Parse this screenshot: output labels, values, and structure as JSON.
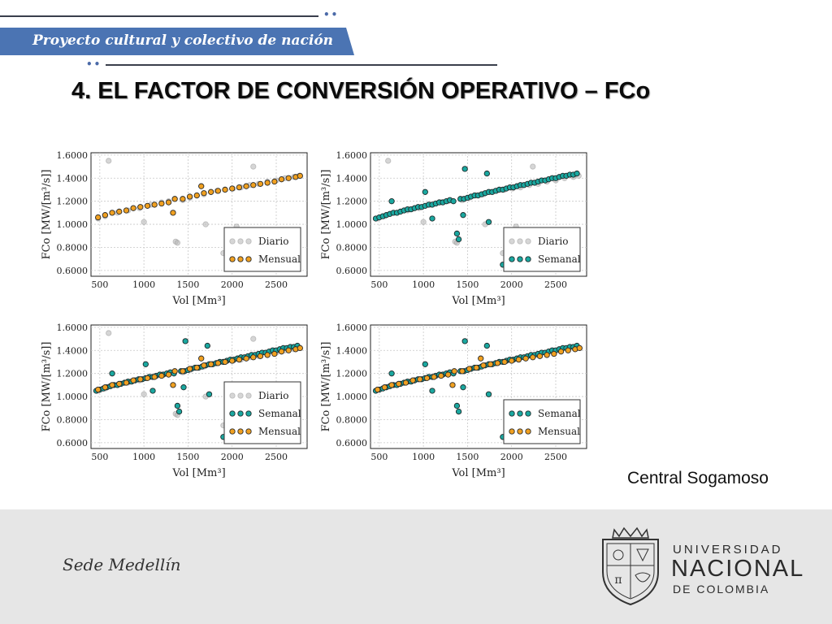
{
  "header": {
    "banner_text": "Proyecto cultural y colectivo de nación",
    "dots": "••"
  },
  "title": "4. EL FACTOR DE CONVERSIÓN OPERATIVO – FCo",
  "caption": "Central Sogamoso",
  "footer": {
    "sede": "Sede Medellín",
    "university_line1": "UNIVERSIDAD",
    "university_line2": "NACIONAL",
    "university_line3": "DE COLOMBIA"
  },
  "colors": {
    "banner": "#4b74b3",
    "diario": "#b4b4b4",
    "mensual": "#f0a020",
    "semanal": "#1aa8a0"
  },
  "chart_data": [
    {
      "type": "scatter",
      "xlabel": "Vol [Mm³]",
      "ylabel": "FCo [MW/[m³/s]]",
      "xlim": [
        400,
        2850
      ],
      "ylim": [
        0.55,
        1.62
      ],
      "xticks": [
        500,
        1000,
        1500,
        2000,
        2500
      ],
      "yticks": [
        "0.6000",
        "0.8000",
        "1.0000",
        "1.2000",
        "1.4000",
        "1.6000"
      ],
      "grid": true,
      "legend_position": "bottom-right",
      "series": [
        {
          "name": "Diario",
          "color_key": "diario",
          "x": [
            480,
            560,
            700,
            820,
            950,
            1080,
            1200,
            1280,
            1360,
            1380,
            1440,
            1520,
            1600,
            1680,
            1760,
            1830,
            1920,
            2010,
            2100,
            2200,
            2300,
            2400,
            2500,
            2600,
            2700,
            2760,
            600,
            1000,
            1950,
            1960,
            2050,
            2240,
            1700,
            1900
          ],
          "y": [
            1.05,
            1.07,
            1.1,
            1.12,
            1.14,
            1.17,
            1.19,
            1.2,
            0.85,
            0.84,
            1.21,
            1.23,
            1.25,
            1.26,
            1.28,
            1.29,
            1.3,
            1.31,
            1.32,
            1.34,
            1.35,
            1.37,
            1.38,
            1.4,
            1.41,
            1.42,
            1.55,
            1.02,
            0.65,
            0.62,
            0.98,
            1.5,
            1.0,
            0.75
          ]
        },
        {
          "name": "Mensual",
          "color_key": "mensual",
          "x": [
            480,
            560,
            640,
            720,
            800,
            880,
            960,
            1040,
            1120,
            1200,
            1280,
            1330,
            1440,
            1520,
            1600,
            1680,
            1760,
            1840,
            1920,
            2000,
            2080,
            2160,
            2240,
            2320,
            2400,
            2480,
            2560,
            2640,
            2720,
            2770,
            1650,
            1350
          ],
          "y": [
            1.06,
            1.08,
            1.1,
            1.11,
            1.12,
            1.14,
            1.15,
            1.16,
            1.17,
            1.18,
            1.19,
            1.1,
            1.22,
            1.24,
            1.25,
            1.27,
            1.28,
            1.29,
            1.3,
            1.31,
            1.32,
            1.33,
            1.34,
            1.35,
            1.36,
            1.37,
            1.39,
            1.4,
            1.41,
            1.42,
            1.33,
            1.22
          ]
        }
      ]
    },
    {
      "type": "scatter",
      "xlabel": "Vol [Mm³]",
      "ylabel": "FCo [MW/[m³/s]]",
      "xlim": [
        400,
        2850
      ],
      "ylim": [
        0.55,
        1.62
      ],
      "xticks": [
        500,
        1000,
        1500,
        2000,
        2500
      ],
      "yticks": [
        "0.6000",
        "0.8000",
        "1.0000",
        "1.2000",
        "1.4000",
        "1.6000"
      ],
      "grid": true,
      "legend_position": "bottom-right",
      "series": [
        {
          "name": "Diario",
          "color_key": "diario",
          "x": [
            480,
            560,
            700,
            820,
            950,
            1080,
            1200,
            1280,
            1360,
            1380,
            1440,
            1520,
            1600,
            1680,
            1760,
            1830,
            1920,
            2010,
            2100,
            2200,
            2300,
            2400,
            2500,
            2600,
            2700,
            2760,
            600,
            1000,
            1950,
            1960,
            2050,
            2240,
            1700,
            1900
          ],
          "y": [
            1.05,
            1.07,
            1.1,
            1.12,
            1.14,
            1.17,
            1.19,
            1.2,
            0.85,
            0.84,
            1.21,
            1.23,
            1.25,
            1.26,
            1.28,
            1.29,
            1.3,
            1.31,
            1.32,
            1.34,
            1.35,
            1.37,
            1.38,
            1.4,
            1.41,
            1.42,
            1.55,
            1.02,
            0.65,
            0.62,
            0.98,
            1.5,
            1.0,
            0.75
          ]
        },
        {
          "name": "Semanal",
          "color_key": "semanal",
          "x": [
            460,
            500,
            540,
            580,
            620,
            660,
            700,
            740,
            780,
            820,
            860,
            900,
            940,
            980,
            1020,
            1060,
            1100,
            1140,
            1180,
            1220,
            1260,
            1300,
            1340,
            1380,
            1400,
            1420,
            1460,
            1500,
            1540,
            1580,
            1620,
            1660,
            1700,
            1740,
            1780,
            1820,
            1860,
            1900,
            1940,
            1980,
            2020,
            2060,
            2100,
            2140,
            2180,
            2220,
            2260,
            2300,
            2340,
            2380,
            2420,
            2460,
            2500,
            2540,
            2580,
            2620,
            2660,
            2700,
            2740,
            1470,
            1720,
            1740,
            1100,
            1450,
            1900,
            1940,
            640,
            1020
          ],
          "y": [
            1.05,
            1.06,
            1.07,
            1.08,
            1.09,
            1.1,
            1.1,
            1.11,
            1.12,
            1.13,
            1.13,
            1.14,
            1.15,
            1.15,
            1.16,
            1.17,
            1.17,
            1.18,
            1.19,
            1.19,
            1.2,
            1.21,
            1.2,
            0.92,
            0.87,
            1.22,
            1.22,
            1.23,
            1.24,
            1.25,
            1.25,
            1.26,
            1.27,
            1.28,
            1.28,
            1.29,
            1.3,
            1.3,
            1.31,
            1.32,
            1.32,
            1.33,
            1.34,
            1.34,
            1.35,
            1.36,
            1.36,
            1.37,
            1.38,
            1.38,
            1.39,
            1.4,
            1.4,
            1.41,
            1.42,
            1.42,
            1.43,
            1.43,
            1.44,
            1.48,
            1.44,
            1.02,
            1.05,
            1.08,
            0.65,
            0.67,
            1.2,
            1.28
          ]
        }
      ]
    },
    {
      "type": "scatter",
      "xlabel": "Vol [Mm³]",
      "ylabel": "FCo [MW/[m³/s]]",
      "xlim": [
        400,
        2850
      ],
      "ylim": [
        0.55,
        1.62
      ],
      "xticks": [
        500,
        1000,
        1500,
        2000,
        2500
      ],
      "yticks": [
        "0.6000",
        "0.8000",
        "1.0000",
        "1.2000",
        "1.4000",
        "1.6000"
      ],
      "grid": true,
      "legend_position": "bottom-right",
      "series": [
        {
          "name": "Diario",
          "color_key": "diario",
          "x": [
            480,
            560,
            700,
            820,
            950,
            1080,
            1200,
            1280,
            1360,
            1380,
            1440,
            1520,
            1600,
            1680,
            1760,
            1830,
            1920,
            2010,
            2100,
            2200,
            2300,
            2400,
            2500,
            2600,
            2700,
            2760,
            600,
            1000,
            1950,
            1960,
            2050,
            2240,
            1700,
            1900
          ],
          "y": [
            1.05,
            1.07,
            1.1,
            1.12,
            1.14,
            1.17,
            1.19,
            1.2,
            0.85,
            0.84,
            1.21,
            1.23,
            1.25,
            1.26,
            1.28,
            1.29,
            1.3,
            1.31,
            1.32,
            1.34,
            1.35,
            1.37,
            1.38,
            1.4,
            1.41,
            1.42,
            1.55,
            1.02,
            0.65,
            0.62,
            0.98,
            1.5,
            1.0,
            0.75
          ]
        },
        {
          "name": "Semanal",
          "color_key": "semanal",
          "x": [
            460,
            500,
            540,
            580,
            620,
            660,
            700,
            740,
            780,
            820,
            860,
            900,
            940,
            980,
            1020,
            1060,
            1100,
            1140,
            1180,
            1220,
            1260,
            1300,
            1340,
            1380,
            1400,
            1420,
            1460,
            1500,
            1540,
            1580,
            1620,
            1660,
            1700,
            1740,
            1780,
            1820,
            1860,
            1900,
            1940,
            1980,
            2020,
            2060,
            2100,
            2140,
            2180,
            2220,
            2260,
            2300,
            2340,
            2380,
            2420,
            2460,
            2500,
            2540,
            2580,
            2620,
            2660,
            2700,
            2740,
            1470,
            1720,
            1740,
            1100,
            1450,
            1900,
            1940,
            640,
            1020
          ],
          "y": [
            1.05,
            1.06,
            1.07,
            1.08,
            1.09,
            1.1,
            1.1,
            1.11,
            1.12,
            1.13,
            1.13,
            1.14,
            1.15,
            1.15,
            1.16,
            1.17,
            1.17,
            1.18,
            1.19,
            1.19,
            1.2,
            1.21,
            1.2,
            0.92,
            0.87,
            1.22,
            1.22,
            1.23,
            1.24,
            1.25,
            1.25,
            1.26,
            1.27,
            1.28,
            1.28,
            1.29,
            1.3,
            1.3,
            1.31,
            1.32,
            1.32,
            1.33,
            1.34,
            1.34,
            1.35,
            1.36,
            1.36,
            1.37,
            1.38,
            1.38,
            1.39,
            1.4,
            1.4,
            1.41,
            1.42,
            1.42,
            1.43,
            1.43,
            1.44,
            1.48,
            1.44,
            1.02,
            1.05,
            1.08,
            0.65,
            0.67,
            1.2,
            1.28
          ]
        },
        {
          "name": "Mensual",
          "color_key": "mensual",
          "x": [
            480,
            560,
            640,
            720,
            800,
            880,
            960,
            1040,
            1120,
            1200,
            1280,
            1330,
            1440,
            1520,
            1600,
            1680,
            1760,
            1840,
            1920,
            2000,
            2080,
            2160,
            2240,
            2320,
            2400,
            2480,
            2560,
            2640,
            2720,
            2770,
            1650,
            1350
          ],
          "y": [
            1.06,
            1.08,
            1.1,
            1.11,
            1.12,
            1.14,
            1.15,
            1.16,
            1.17,
            1.18,
            1.19,
            1.1,
            1.22,
            1.24,
            1.25,
            1.27,
            1.28,
            1.29,
            1.3,
            1.31,
            1.32,
            1.33,
            1.34,
            1.35,
            1.36,
            1.37,
            1.39,
            1.4,
            1.41,
            1.42,
            1.33,
            1.22
          ]
        }
      ]
    },
    {
      "type": "scatter",
      "xlabel": "Vol [Mm³]",
      "ylabel": "FCo [MW/[m³/s]]",
      "xlim": [
        400,
        2850
      ],
      "ylim": [
        0.55,
        1.62
      ],
      "xticks": [
        500,
        1000,
        1500,
        2000,
        2500
      ],
      "yticks": [
        "0.6000",
        "0.8000",
        "1.0000",
        "1.2000",
        "1.4000",
        "1.6000"
      ],
      "grid": true,
      "legend_position": "bottom-right",
      "series": [
        {
          "name": "Semanal",
          "color_key": "semanal",
          "x": [
            460,
            500,
            540,
            580,
            620,
            660,
            700,
            740,
            780,
            820,
            860,
            900,
            940,
            980,
            1020,
            1060,
            1100,
            1140,
            1180,
            1220,
            1260,
            1300,
            1340,
            1380,
            1400,
            1420,
            1460,
            1500,
            1540,
            1580,
            1620,
            1660,
            1700,
            1740,
            1780,
            1820,
            1860,
            1900,
            1940,
            1980,
            2020,
            2060,
            2100,
            2140,
            2180,
            2220,
            2260,
            2300,
            2340,
            2380,
            2420,
            2460,
            2500,
            2540,
            2580,
            2620,
            2660,
            2700,
            2740,
            1470,
            1720,
            1740,
            1100,
            1450,
            1900,
            1940,
            640,
            1020
          ],
          "y": [
            1.05,
            1.06,
            1.07,
            1.08,
            1.09,
            1.1,
            1.1,
            1.11,
            1.12,
            1.13,
            1.13,
            1.14,
            1.15,
            1.15,
            1.16,
            1.17,
            1.17,
            1.18,
            1.19,
            1.19,
            1.2,
            1.21,
            1.2,
            0.92,
            0.87,
            1.22,
            1.22,
            1.23,
            1.24,
            1.25,
            1.25,
            1.26,
            1.27,
            1.28,
            1.28,
            1.29,
            1.3,
            1.3,
            1.31,
            1.32,
            1.32,
            1.33,
            1.34,
            1.34,
            1.35,
            1.36,
            1.36,
            1.37,
            1.38,
            1.38,
            1.39,
            1.4,
            1.4,
            1.41,
            1.42,
            1.42,
            1.43,
            1.43,
            1.44,
            1.48,
            1.44,
            1.02,
            1.05,
            1.08,
            0.65,
            0.67,
            1.2,
            1.28
          ]
        },
        {
          "name": "Mensual",
          "color_key": "mensual",
          "x": [
            480,
            560,
            640,
            720,
            800,
            880,
            960,
            1040,
            1120,
            1200,
            1280,
            1330,
            1440,
            1520,
            1600,
            1680,
            1760,
            1840,
            1920,
            2000,
            2080,
            2160,
            2240,
            2320,
            2400,
            2480,
            2560,
            2640,
            2720,
            2770,
            1650,
            1350
          ],
          "y": [
            1.06,
            1.08,
            1.1,
            1.11,
            1.12,
            1.14,
            1.15,
            1.16,
            1.17,
            1.18,
            1.19,
            1.1,
            1.22,
            1.24,
            1.25,
            1.27,
            1.28,
            1.29,
            1.3,
            1.31,
            1.32,
            1.33,
            1.34,
            1.35,
            1.36,
            1.37,
            1.39,
            1.4,
            1.41,
            1.42,
            1.33,
            1.22
          ]
        }
      ]
    }
  ]
}
